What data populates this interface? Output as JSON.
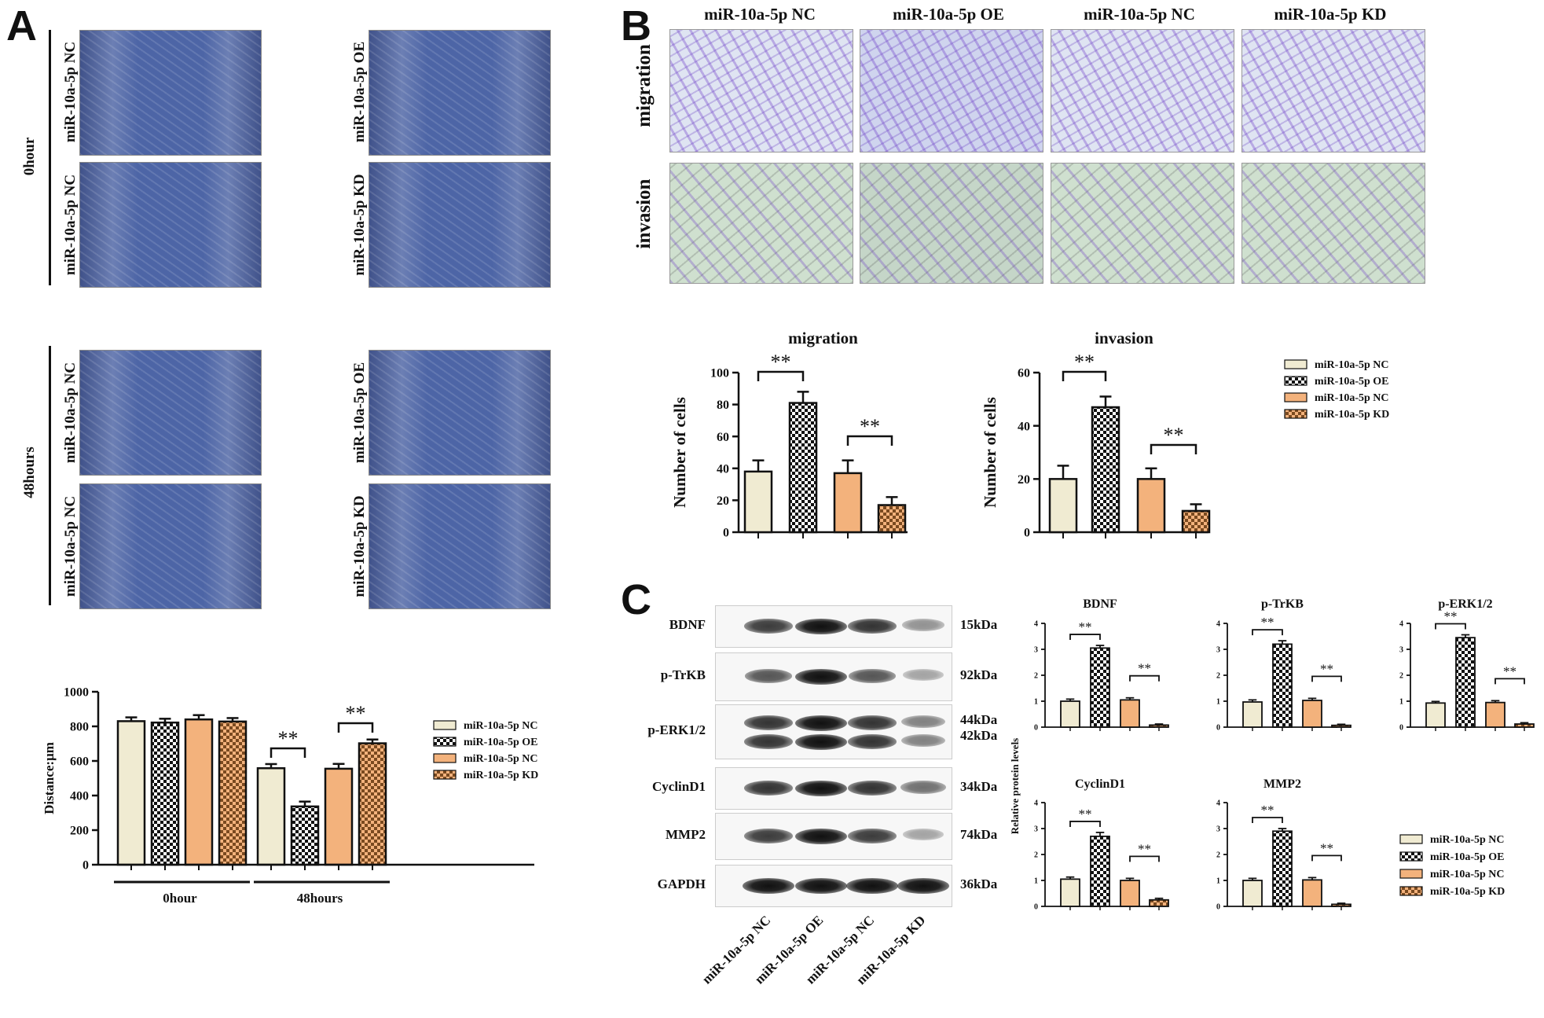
{
  "panels": {
    "A": "A",
    "B": "B",
    "C": "C"
  },
  "panelA": {
    "time_labels": [
      "0hour",
      "48hours"
    ],
    "image_labels": [
      "miR-10a-5p NC",
      "miR-10a-5p OE",
      "miR-10a-5p NC",
      "miR-10a-5p KD",
      "miR-10a-5p NC",
      "miR-10a-5p OE",
      "miR-10a-5p NC",
      "miR-10a-5p KD"
    ]
  },
  "panelB": {
    "columns": [
      "miR-10a-5p NC",
      "miR-10a-5p OE",
      "miR-10a-5p NC",
      "miR-10a-5p KD"
    ],
    "rows": [
      "migration",
      "invasion"
    ]
  },
  "blot": {
    "proteins": [
      {
        "name": "BDNF",
        "kda": "15kDa"
      },
      {
        "name": "p-TrKB",
        "kda": "92kDa"
      },
      {
        "name": "p-ERK1/2",
        "kda": "44kDa",
        "kda2": "42kDa"
      },
      {
        "name": "CyclinD1",
        "kda": "34kDa"
      },
      {
        "name": "MMP2",
        "kda": "74kDa"
      },
      {
        "name": "GAPDH",
        "kda": "36kDa"
      }
    ],
    "lanes": [
      "miR-10a-5p NC",
      "miR-10a-5p OE",
      "miR-10a-5p NC",
      "miR-10a-5p KD"
    ],
    "band_intensity": [
      [
        0.75,
        1.0,
        0.8,
        0.25
      ],
      [
        0.6,
        1.0,
        0.6,
        0.15
      ],
      [
        0.8,
        1.0,
        0.8,
        0.35
      ],
      [
        0.8,
        1.0,
        0.8,
        0.45
      ],
      [
        0.75,
        1.0,
        0.75,
        0.15
      ],
      [
        1.0,
        1.0,
        1.0,
        1.0
      ]
    ]
  },
  "legend": {
    "entries": [
      "miR-10a-5p NC",
      "miR-10a-5p OE",
      "miR-10a-5p NC",
      "miR-10a-5p KD"
    ],
    "colors": [
      "#f0ebd2",
      "checker",
      "#f3b27c",
      "#f3b27c-checker"
    ]
  },
  "chart_data": [
    {
      "id": "distance",
      "type": "bar",
      "title": "",
      "xlabel": "",
      "ylabel": "Distance:μm",
      "groups": [
        "0hour",
        "48hours"
      ],
      "series": [
        {
          "name": "miR-10a-5p NC",
          "values": [
            830,
            558
          ],
          "errors": [
            22,
            24
          ]
        },
        {
          "name": "miR-10a-5p OE",
          "values": [
            822,
            337
          ],
          "errors": [
            22,
            28
          ]
        },
        {
          "name": "miR-10a-5p NC",
          "values": [
            840,
            555
          ],
          "errors": [
            25,
            28
          ]
        },
        {
          "name": "miR-10a-5p KD",
          "values": [
            828,
            702
          ],
          "errors": [
            20,
            22
          ]
        }
      ],
      "ylim": [
        0,
        1000
      ],
      "yticks": [
        0,
        200,
        400,
        600,
        800,
        1000
      ],
      "significance": [
        "**",
        "**"
      ],
      "grid": false
    },
    {
      "id": "migration",
      "type": "bar",
      "title": "migration",
      "ylabel": "Number of cells",
      "categories": [
        "miR-10a-5p NC",
        "miR-10a-5p OE",
        "miR-10a-5p NC",
        "miR-10a-5p KD"
      ],
      "values": [
        38,
        81,
        37,
        17
      ],
      "errors": [
        7,
        7,
        8,
        5
      ],
      "ylim": [
        0,
        100
      ],
      "yticks": [
        0,
        20,
        40,
        60,
        80,
        100
      ],
      "significance": [
        "**",
        "**"
      ]
    },
    {
      "id": "invasion",
      "type": "bar",
      "title": "invasion",
      "ylabel": "Number of cells",
      "categories": [
        "miR-10a-5p NC",
        "miR-10a-5p OE",
        "miR-10a-5p NC",
        "miR-10a-5p KD"
      ],
      "values": [
        20,
        47,
        20,
        8
      ],
      "errors": [
        5,
        4,
        4,
        2.5
      ],
      "ylim": [
        0,
        60
      ],
      "yticks": [
        0,
        20,
        40,
        60
      ],
      "significance": [
        "**",
        "**"
      ]
    },
    {
      "id": "BDNF",
      "type": "bar",
      "title": "BDNF",
      "ylabel": "",
      "categories": [
        "miR-10a-5p NC",
        "miR-10a-5p OE",
        "miR-10a-5p NC",
        "miR-10a-5p KD"
      ],
      "values": [
        1.0,
        3.05,
        1.05,
        0.08
      ],
      "errors": [
        0.08,
        0.1,
        0.08,
        0.04
      ],
      "ylim": [
        0,
        4
      ],
      "yticks": [
        0,
        1,
        2,
        3,
        4
      ],
      "significance": [
        "**",
        "**"
      ]
    },
    {
      "id": "pTrKB",
      "type": "bar",
      "title": "p-TrKB",
      "ylabel": "",
      "categories": [
        "miR-10a-5p NC",
        "miR-10a-5p OE",
        "miR-10a-5p NC",
        "miR-10a-5p KD"
      ],
      "values": [
        0.97,
        3.2,
        1.03,
        0.07
      ],
      "errors": [
        0.08,
        0.13,
        0.08,
        0.04
      ],
      "ylim": [
        0,
        4
      ],
      "yticks": [
        0,
        1,
        2,
        3,
        4
      ],
      "significance": [
        "**",
        "**"
      ]
    },
    {
      "id": "pERK",
      "type": "bar",
      "title": "p-ERK1/2",
      "ylabel": "",
      "categories": [
        "miR-10a-5p NC",
        "miR-10a-5p OE",
        "miR-10a-5p NC",
        "miR-10a-5p KD"
      ],
      "values": [
        0.93,
        3.45,
        0.95,
        0.12
      ],
      "errors": [
        0.06,
        0.11,
        0.07,
        0.05
      ],
      "ylim": [
        0,
        4
      ],
      "yticks": [
        0,
        1,
        2,
        3,
        4
      ],
      "significance": [
        "**",
        "**"
      ]
    },
    {
      "id": "CyclinD1",
      "type": "bar",
      "title": "CyclinD1",
      "ylabel": "Relative protein levels",
      "categories": [
        "miR-10a-5p NC",
        "miR-10a-5p OE",
        "miR-10a-5p NC",
        "miR-10a-5p KD"
      ],
      "values": [
        1.05,
        2.7,
        1.0,
        0.25
      ],
      "errors": [
        0.08,
        0.15,
        0.08,
        0.06
      ],
      "ylim": [
        0,
        4
      ],
      "yticks": [
        0,
        1,
        2,
        3,
        4
      ],
      "significance": [
        "**",
        "**"
      ]
    },
    {
      "id": "MMP2",
      "type": "bar",
      "title": "MMP2",
      "ylabel": "",
      "categories": [
        "miR-10a-5p NC",
        "miR-10a-5p OE",
        "miR-10a-5p NC",
        "miR-10a-5p KD"
      ],
      "values": [
        1.0,
        2.9,
        1.02,
        0.08
      ],
      "errors": [
        0.08,
        0.1,
        0.09,
        0.04
      ],
      "ylim": [
        0,
        4
      ],
      "yticks": [
        0,
        1,
        2,
        3,
        4
      ],
      "significance": [
        "**",
        "**"
      ]
    }
  ]
}
